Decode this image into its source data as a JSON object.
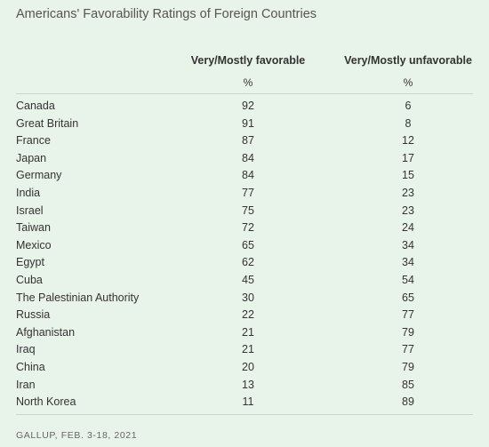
{
  "title": "Americans' Favorability Ratings of Foreign Countries",
  "table": {
    "header": [
      "Very/Mostly favorable",
      "Very/Mostly unfavorable"
    ],
    "units": [
      "%",
      "%"
    ],
    "rows": [
      [
        "Canada",
        92,
        6
      ],
      [
        "Great Britain",
        91,
        8
      ],
      [
        "France",
        87,
        12
      ],
      [
        "Japan",
        84,
        17
      ],
      [
        "Germany",
        84,
        15
      ],
      [
        "India",
        77,
        23
      ],
      [
        "Israel",
        75,
        23
      ],
      [
        "Taiwan",
        72,
        24
      ],
      [
        "Mexico",
        65,
        34
      ],
      [
        "Egypt",
        62,
        34
      ],
      [
        "Cuba",
        45,
        54
      ],
      [
        "The Palestinian Authority",
        30,
        65
      ],
      [
        "Russia",
        22,
        77
      ],
      [
        "Afghanistan",
        21,
        79
      ],
      [
        "Iraq",
        21,
        77
      ],
      [
        "China",
        20,
        79
      ],
      [
        "Iran",
        13,
        85
      ],
      [
        "North Korea",
        11,
        89
      ]
    ]
  },
  "source": "GALLUP, FEB. 3-18, 2021"
}
